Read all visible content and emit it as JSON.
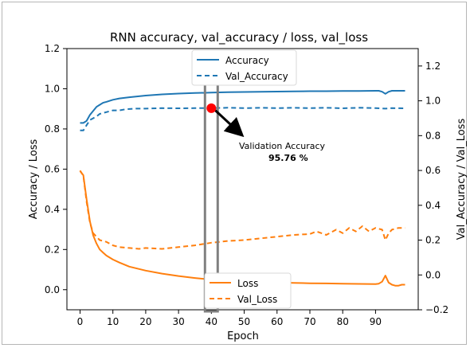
{
  "chart_data": {
    "type": "line",
    "title": "RNN accuracy, val_accuracy / loss, val_loss",
    "xlabel": "Epoch",
    "ylabel_left": "Accuracy / Loss",
    "ylabel_right": "Val_Accuracy / Val_Loss",
    "xlim": [
      -4,
      103
    ],
    "ylim_left": [
      -0.1,
      1.2
    ],
    "ylim_right": [
      -0.2,
      1.3
    ],
    "xticks": [
      "0",
      "10",
      "20",
      "30",
      "40",
      "50",
      "60",
      "70",
      "80",
      "90"
    ],
    "yticks_left": [
      "0.0",
      "0.2",
      "0.4",
      "0.6",
      "0.8",
      "1.0",
      "1.2"
    ],
    "yticks_right": [
      "−0.2",
      "0.0",
      "0.2",
      "0.4",
      "0.6",
      "0.8",
      "1.0",
      "1.2"
    ],
    "grid": false,
    "colors": {
      "accuracy": "#1f77b4",
      "loss": "#ff7f0e",
      "marker": "#ff0000",
      "highlight_box": "#808080"
    },
    "legend_top": {
      "placement": "upper-center",
      "entries": [
        "Accuracy",
        "Val_Accuracy"
      ]
    },
    "legend_bottom": {
      "placement": "lower-center",
      "entries": [
        "Loss",
        "Val_Loss"
      ]
    },
    "series": [
      {
        "name": "Accuracy",
        "axis": "left",
        "style": "solid",
        "color": "#1f77b4",
        "x": [
          0,
          1,
          2,
          3,
          4,
          5,
          6,
          7,
          8,
          10,
          12,
          15,
          20,
          25,
          30,
          35,
          40,
          45,
          50,
          55,
          60,
          65,
          70,
          75,
          80,
          85,
          90,
          91,
          92,
          93,
          94,
          95,
          96,
          97,
          98,
          99
        ],
        "values": [
          0.83,
          0.83,
          0.84,
          0.87,
          0.89,
          0.91,
          0.92,
          0.93,
          0.935,
          0.945,
          0.952,
          0.958,
          0.966,
          0.972,
          0.976,
          0.979,
          0.981,
          0.983,
          0.984,
          0.985,
          0.986,
          0.987,
          0.988,
          0.988,
          0.989,
          0.989,
          0.99,
          0.99,
          0.985,
          0.975,
          0.985,
          0.99,
          0.99,
          0.99,
          0.99,
          0.99
        ]
      },
      {
        "name": "Val_Accuracy",
        "axis": "right",
        "style": "dashed",
        "color": "#1f77b4",
        "x": [
          0,
          1,
          2,
          3,
          4,
          5,
          6,
          8,
          10,
          12,
          14,
          17,
          20,
          25,
          30,
          35,
          40,
          45,
          50,
          55,
          60,
          65,
          70,
          75,
          80,
          85,
          90,
          93,
          95,
          99
        ],
        "values": [
          0.83,
          0.83,
          0.86,
          0.89,
          0.9,
          0.91,
          0.925,
          0.935,
          0.945,
          0.945,
          0.952,
          0.955,
          0.955,
          0.958,
          0.957,
          0.958,
          0.958,
          0.96,
          0.958,
          0.96,
          0.958,
          0.96,
          0.958,
          0.96,
          0.957,
          0.96,
          0.958,
          0.955,
          0.958,
          0.957
        ]
      },
      {
        "name": "Loss",
        "axis": "left",
        "style": "solid",
        "color": "#ff7f0e",
        "x": [
          0,
          1,
          2,
          3,
          4,
          5,
          6,
          7,
          8,
          10,
          12,
          15,
          20,
          25,
          30,
          35,
          40,
          45,
          50,
          55,
          60,
          65,
          70,
          75,
          80,
          85,
          90,
          91,
          92,
          93,
          94,
          95,
          96,
          97,
          98,
          99
        ],
        "values": [
          0.59,
          0.57,
          0.45,
          0.34,
          0.27,
          0.23,
          0.2,
          0.185,
          0.17,
          0.15,
          0.135,
          0.115,
          0.095,
          0.08,
          0.068,
          0.058,
          0.05,
          0.045,
          0.041,
          0.038,
          0.036,
          0.034,
          0.032,
          0.031,
          0.03,
          0.029,
          0.028,
          0.03,
          0.04,
          0.07,
          0.035,
          0.025,
          0.02,
          0.02,
          0.025,
          0.025
        ]
      },
      {
        "name": "Val_Loss",
        "axis": "right",
        "style": "dashed",
        "color": "#ff7f0e",
        "x": [
          0,
          1,
          2,
          3,
          4,
          5,
          6,
          8,
          10,
          12,
          15,
          18,
          20,
          25,
          30,
          35,
          40,
          45,
          50,
          55,
          60,
          65,
          70,
          72,
          75,
          78,
          80,
          82,
          84,
          86,
          88,
          90,
          92,
          93,
          94,
          95,
          97,
          99
        ],
        "values": [
          0.6,
          0.57,
          0.42,
          0.3,
          0.24,
          0.22,
          0.2,
          0.19,
          0.17,
          0.16,
          0.155,
          0.15,
          0.155,
          0.15,
          0.16,
          0.17,
          0.185,
          0.195,
          0.2,
          0.21,
          0.22,
          0.23,
          0.235,
          0.25,
          0.23,
          0.26,
          0.24,
          0.27,
          0.25,
          0.28,
          0.25,
          0.27,
          0.26,
          0.2,
          0.24,
          0.26,
          0.27,
          0.27
        ]
      }
    ],
    "annotation": {
      "label": "Validation  Accuracy",
      "value": "95.76 %",
      "marker_x": 40,
      "marker_y_right": 0.9576
    },
    "highlight_epoch": 40
  }
}
